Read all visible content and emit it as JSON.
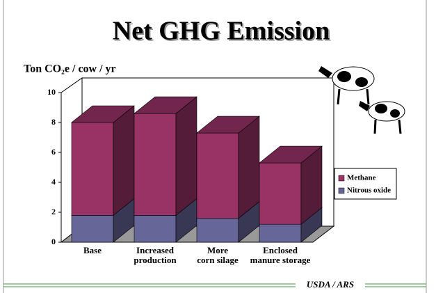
{
  "chart_data": {
    "type": "bar3d_stacked",
    "title": "Net GHG Emission",
    "y_label": "Ton CO₂e / cow / yr",
    "footer": "USDA / ARS",
    "categories": [
      "Base",
      "Increased\nproduction",
      "More\ncorn silage",
      "Enclosed\nmanure storage"
    ],
    "series": [
      {
        "name": "Methane",
        "color": "#993366",
        "values": [
          6.2,
          6.8,
          5.7,
          4.1
        ]
      },
      {
        "name": "Nitrous oxide",
        "color": "#666699",
        "values": [
          1.8,
          1.8,
          1.6,
          1.2
        ]
      }
    ],
    "ylim": [
      0,
      10
    ],
    "yticks": [
      0,
      2,
      4,
      6,
      8,
      10
    ],
    "grid": false,
    "legend": "right"
  }
}
